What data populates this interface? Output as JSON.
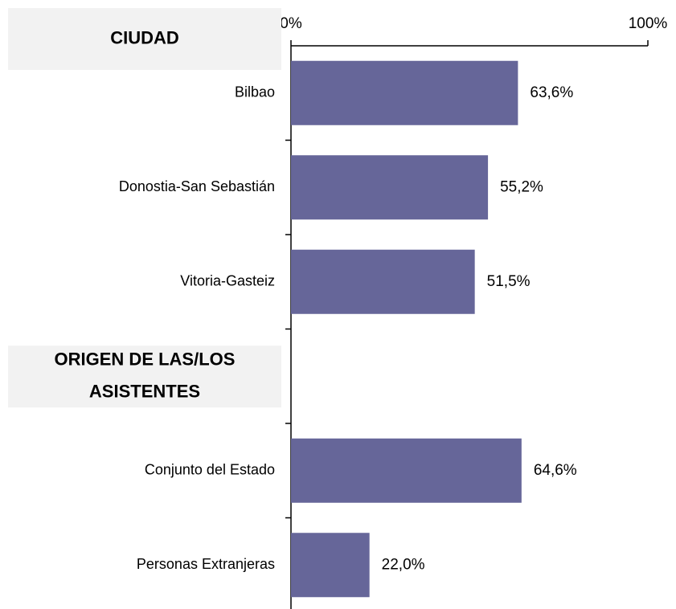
{
  "chart_data": {
    "type": "bar",
    "orientation": "horizontal",
    "color": "#666699",
    "xlim": [
      0,
      100
    ],
    "xticks": [
      {
        "value": 0,
        "label": "0%"
      },
      {
        "value": 100,
        "label": "100%"
      }
    ],
    "groups": [
      {
        "name": "CIUDAD",
        "categories": [
          "Bilbao",
          "Donostia-San Sebastián",
          "Vitoria-Gasteiz"
        ],
        "values": [
          63.6,
          55.2,
          51.5
        ],
        "value_labels": [
          "63,6%",
          "55,2%",
          "51,5%"
        ]
      },
      {
        "name": [
          "ORIGEN DE LAS/LOS",
          "ASISTENTES"
        ],
        "categories": [
          "Conjunto del Estado",
          "Personas Extranjeras"
        ],
        "values": [
          64.6,
          22.0
        ],
        "value_labels": [
          "64,6%",
          "22,0%"
        ]
      }
    ]
  }
}
